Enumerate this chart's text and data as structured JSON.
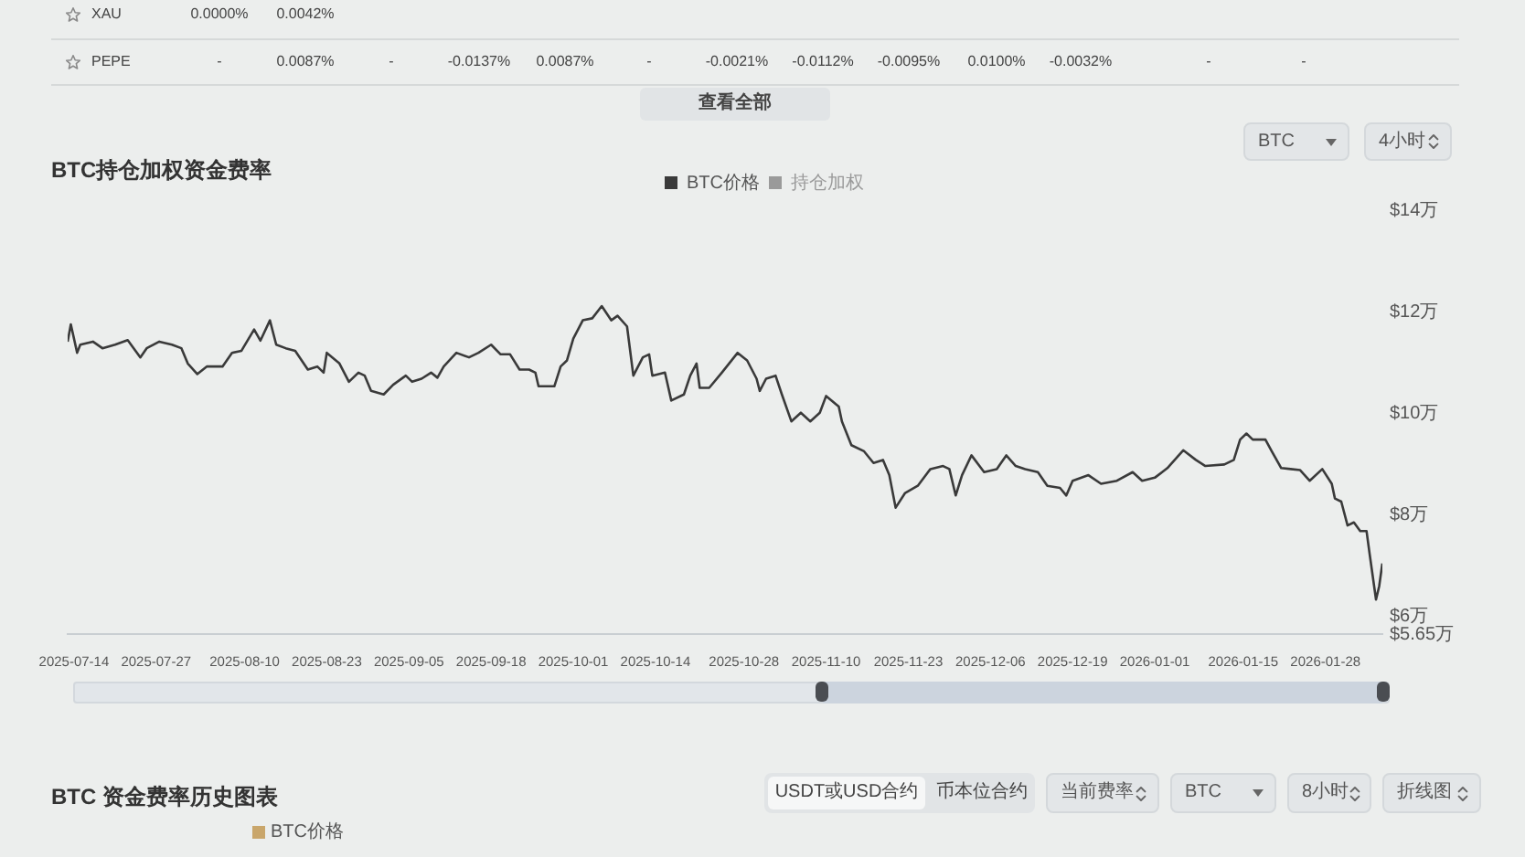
{
  "chart_data": [
    {
      "type": "other",
      "annotations": [
        "XAU",
        "0.0000%",
        "0.0042%",
        "PEPE",
        "-",
        "0.0087%",
        "-",
        "-0.0137%",
        "0.0087%",
        "-",
        "-0.0021%",
        "-0.0112%",
        "-0.0095%",
        "0.0100%",
        "-0.0032%",
        "-",
        "-",
        "查看全部"
      ]
    },
    {
      "type": "line",
      "title": "BTC持仓加权资金费率",
      "annotations": [
        "BTC",
        "4小时"
      ],
      "x": [
        "2025-07-13",
        "2025-07-13T12:00",
        "2025-07-14T12:00",
        "2025-07-15",
        "2025-07-17",
        "2025-07-18T12:00",
        "2025-07-20T12:00",
        "2025-07-22T12:00",
        "2025-07-24T12:00",
        "2025-07-25T12:00",
        "2025-07-27T12:00",
        "2025-07-29T12:00",
        "2025-07-31",
        "2025-08-01",
        "2025-08-02T12:00",
        "2025-08-04",
        "2025-08-06T12:00",
        "2025-08-08",
        "2025-08-09T12:00",
        "2025-08-11T12:00",
        "2025-08-12T12:00",
        "2025-08-14",
        "2025-08-15",
        "2025-08-16T12:00",
        "2025-08-18",
        "2025-08-20",
        "2025-08-21T12:00",
        "2025-08-22T12:00",
        "2025-08-23",
        "2025-08-25",
        "2025-08-26T12:00",
        "2025-08-28",
        "2025-08-29",
        "2025-08-30",
        "2025-09-01",
        "2025-09-02T12:00",
        "2025-09-04T12:00",
        "2025-09-05T12:00",
        "2025-09-07",
        "2025-09-08T12:00",
        "2025-09-09T12:00",
        "2025-09-10T12:00",
        "2025-09-12T12:00",
        "2025-09-14T12:00",
        "2025-09-16",
        "2025-09-18",
        "2025-09-19T12:00",
        "2025-09-21",
        "2025-09-22T12:00",
        "2025-09-24",
        "2025-09-25",
        "2025-09-25T12:00",
        "2025-09-28",
        "2025-09-29",
        "2025-09-30",
        "2025-10-01",
        "2025-10-02T12:00",
        "2025-10-04",
        "2025-10-05T12:00",
        "2025-10-07",
        "2025-10-08",
        "2025-10-09T12:00",
        "2025-10-10T12:00",
        "2025-10-12",
        "2025-10-13",
        "2025-10-13T12:00",
        "2025-10-15T12:00",
        "2025-10-16T12:00",
        "2025-10-18T12:00",
        "2025-10-19T12:00",
        "2025-10-20T12:00",
        "2025-10-21",
        "2025-10-22T12:00",
        "2025-10-24T12:00",
        "2025-10-27",
        "2025-10-28T12:00",
        "2025-10-30",
        "2025-10-30T12:00",
        "2025-10-31T12:00",
        "2025-11-02",
        "2025-11-03",
        "2025-11-04T12:00",
        "2025-11-06",
        "2025-11-07T12:00",
        "2025-11-09",
        "2025-11-10",
        "2025-11-12",
        "2025-11-12T12:00",
        "2025-11-14",
        "2025-11-16",
        "2025-11-17T12:00",
        "2025-11-19",
        "2025-11-20",
        "2025-11-21",
        "2025-11-22T12:00",
        "2025-11-24T12:00",
        "2025-11-26T12:00",
        "2025-11-28T12:00",
        "2025-11-29T12:00",
        "2025-11-30T12:00",
        "2025-12-01T12:00",
        "2025-12-03",
        "2025-12-05",
        "2025-12-07",
        "2025-12-08T12:00",
        "2025-12-10",
        "2025-12-11T12:00",
        "2025-12-13T12:00",
        "2025-12-15",
        "2025-12-17",
        "2025-12-18",
        "2025-12-19",
        "2025-12-21T12:00",
        "2025-12-23T12:00",
        "2025-12-26",
        "2025-12-28T12:00",
        "2025-12-30",
        "2026-01-01",
        "2026-01-03",
        "2026-01-05T12:00",
        "2026-01-07T12:00",
        "2026-01-09",
        "2026-01-12",
        "2026-01-13T12:00",
        "2026-01-14T12:00",
        "2026-01-15T12:00",
        "2026-01-16T12:00",
        "2026-01-18T12:00",
        "2026-01-19T12:00",
        "2026-01-21",
        "2026-01-22T12:00",
        "2026-01-24",
        "2026-01-25T12:00",
        "2026-01-27T12:00",
        "2026-01-29",
        "2026-01-29T12:00",
        "2026-01-30T12:00",
        "2026-01-31T12:00",
        "2026-02-01T12:00",
        "2026-02-02T12:00",
        "2026-02-03T12:00",
        "2026-02-04",
        "2026-02-05",
        "2026-02-05T12:00",
        "2026-02-06"
      ],
      "series": [
        {
          "name": "BTC价格",
          "color": "#3a3a3a",
          "values": [
            11.41,
            11.75,
            11.19,
            11.35,
            11.41,
            11.28,
            11.35,
            11.44,
            11.1,
            11.28,
            11.41,
            11.35,
            11.28,
            10.98,
            10.77,
            10.92,
            10.92,
            11.19,
            11.23,
            11.65,
            11.43,
            11.83,
            11.35,
            11.28,
            11.23,
            10.86,
            10.92,
            10.8,
            11.19,
            10.98,
            10.62,
            10.8,
            10.74,
            10.44,
            10.37,
            10.56,
            10.74,
            10.62,
            10.68,
            10.8,
            10.7,
            10.92,
            11.19,
            11.1,
            11.19,
            11.35,
            11.16,
            11.16,
            10.86,
            10.86,
            10.8,
            10.53,
            10.53,
            10.92,
            11.04,
            11.47,
            11.83,
            11.87,
            12.11,
            11.83,
            11.92,
            11.71,
            10.74,
            11.1,
            11.16,
            10.74,
            10.8,
            10.25,
            10.37,
            10.74,
            10.98,
            10.5,
            10.5,
            10.8,
            11.19,
            11.04,
            10.68,
            10.44,
            10.68,
            10.74,
            10.37,
            9.84,
            10.01,
            9.84,
            10.01,
            10.34,
            10.13,
            9.84,
            9.37,
            9.25,
            9.02,
            9.08,
            8.78,
            8.14,
            8.43,
            8.57,
            8.9,
            8.96,
            8.9,
            8.38,
            8.78,
            9.17,
            8.84,
            8.9,
            9.17,
            8.96,
            8.9,
            8.84,
            8.57,
            8.53,
            8.38,
            8.67,
            8.78,
            8.61,
            8.67,
            8.84,
            8.67,
            8.73,
            8.92,
            9.27,
            9.08,
            8.96,
            8.99,
            9.08,
            9.48,
            9.6,
            9.48,
            9.48,
            9.25,
            8.92,
            8.9,
            8.88,
            8.67,
            8.9,
            8.61,
            8.32,
            8.26,
            7.79,
            7.85,
            7.68,
            7.68,
            7.22,
            6.33,
            6.59,
            7.04
          ]
        },
        {
          "name": "持仓加权",
          "color": "#9a9a9a",
          "values": [
            null,
            null,
            null,
            null,
            null,
            null,
            null,
            null,
            null,
            null,
            null,
            null,
            null,
            null,
            null,
            null,
            null,
            null,
            null,
            null,
            null,
            null,
            null,
            null,
            null,
            null,
            null,
            null,
            null,
            null,
            null,
            null,
            null,
            null,
            null,
            null,
            null,
            null,
            null,
            null,
            null,
            null,
            null,
            null,
            null,
            null,
            null,
            null,
            null,
            null,
            null,
            null,
            null,
            null,
            null,
            null,
            null,
            null,
            null,
            null,
            null,
            null,
            null,
            null,
            null,
            null,
            null,
            null,
            null,
            null,
            null,
            null,
            null,
            null,
            null,
            null,
            null,
            null,
            null,
            null,
            null,
            null,
            null,
            null,
            null,
            null,
            null,
            null,
            null,
            null,
            null,
            null,
            null,
            null,
            null,
            null,
            null,
            null,
            null,
            null,
            null,
            null,
            null,
            null,
            null,
            null,
            null,
            null,
            null,
            null,
            null,
            null,
            null,
            null,
            null,
            null,
            null,
            null,
            null,
            null,
            null,
            null,
            null,
            null,
            null,
            null,
            null,
            null,
            null,
            null,
            null,
            null,
            null,
            null,
            null,
            null,
            null,
            null,
            null,
            null,
            null,
            null,
            null,
            null,
            null
          ]
        }
      ],
      "xlim": [
        "2025-07-13",
        "2026-02-06"
      ],
      "xticks": [
        "2025-07-14",
        "2025-07-27",
        "2025-08-10",
        "2025-08-23",
        "2025-09-05",
        "2025-09-18",
        "2025-10-01",
        "2025-10-14",
        "2025-10-28",
        "2025-11-10",
        "2025-11-23",
        "2025-12-06",
        "2025-12-19",
        "2026-01-01",
        "2026-01-15",
        "2026-01-28"
      ],
      "ylim": [
        5.65,
        14
      ],
      "yticks": [
        {
          "value": 5.65,
          "label": "$5.65万"
        },
        {
          "value": 6,
          "label": "$6万"
        },
        {
          "value": 8,
          "label": "$8万"
        },
        {
          "value": 10,
          "label": "$10万"
        },
        {
          "value": 12,
          "label": "$12万"
        },
        {
          "value": 14,
          "label": "$14万"
        }
      ],
      "legend": "top"
    },
    {
      "type": "other",
      "title": "BTC 资金费率历史图表",
      "annotations": [
        "USDT或USD合约",
        "币本位合约",
        "当前费率",
        "BTC",
        "8小时",
        "折线图",
        "BTC价格"
      ],
      "color": "#c9a66b"
    }
  ]
}
